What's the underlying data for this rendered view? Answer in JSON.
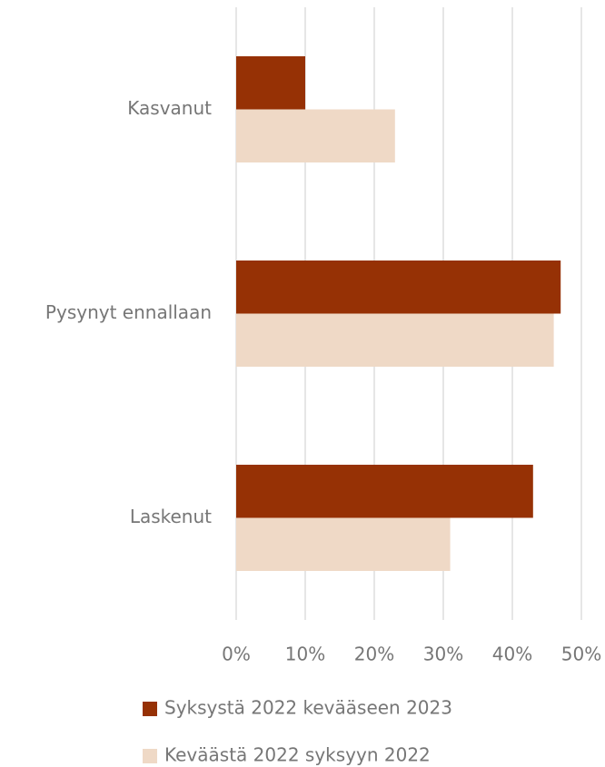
{
  "chart_data": {
    "type": "bar",
    "orientation": "horizontal",
    "categories": [
      "Kasvanut",
      "Pysynyt ennallaan",
      "Laskenut"
    ],
    "series": [
      {
        "name": "Syksystä 2022 kevääseen 2023",
        "color": "#963105",
        "values": [
          10,
          47,
          43
        ]
      },
      {
        "name": "Keväästä 2022 syksyyn 2022",
        "color": "#efd9c6",
        "values": [
          23,
          46,
          31
        ]
      }
    ],
    "xlim": [
      0,
      50
    ],
    "xticks": [
      {
        "value": 0,
        "label": "0%"
      },
      {
        "value": 10,
        "label": "10%"
      },
      {
        "value": 20,
        "label": "20%"
      },
      {
        "value": 30,
        "label": "30%"
      },
      {
        "value": 40,
        "label": "40%"
      },
      {
        "value": 50,
        "label": "50%"
      }
    ],
    "grid": true
  }
}
